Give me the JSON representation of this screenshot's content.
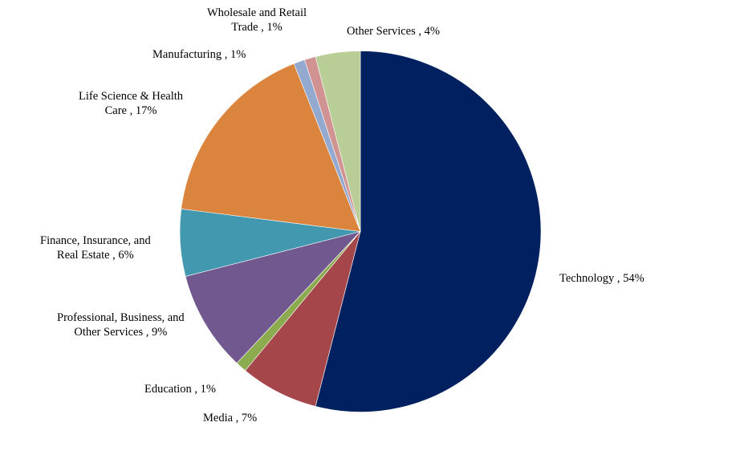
{
  "chart_data": {
    "type": "pie",
    "title": "",
    "start_angle_deg": 0,
    "direction": "clockwise",
    "slices": [
      {
        "label": "Technology",
        "value": 54,
        "display": "Technology , 54%",
        "color": "#002060"
      },
      {
        "label": "Media",
        "value": 7,
        "display": "Media , 7%",
        "color": "#A5464A"
      },
      {
        "label": "Education",
        "value": 1,
        "display": "Education , 1%",
        "color": "#8CAA4E"
      },
      {
        "label": "Professional, Business, and Other Services",
        "value": 9,
        "display": "Professional, Business, and Other Services , 9%",
        "color": "#71588F"
      },
      {
        "label": "Finance, Insurance, and Real Estate",
        "value": 6,
        "display": "Finance, Insurance, and Real Estate , 6%",
        "color": "#4198AF"
      },
      {
        "label": "Life Science & Health Care",
        "value": 17,
        "display": "Life Science & Health Care , 17%",
        "color": "#DB843D"
      },
      {
        "label": "Manufacturing",
        "value": 1,
        "display": "Manufacturing , 1%",
        "color": "#93A9CF"
      },
      {
        "label": "Wholesale and Retail Trade",
        "value": 1,
        "display": "Wholesale and Retail Trade , 1%",
        "color": "#D19392"
      },
      {
        "label": "Other Services",
        "value": 4,
        "display": "Other Services , 4%",
        "color": "#B9CD96"
      }
    ]
  },
  "labels": {
    "technology": [
      "Technology , 54%"
    ],
    "media": [
      "Media , 7%"
    ],
    "education": [
      "Education , 1%"
    ],
    "professional": [
      "Professional, Business, and",
      "Other Services , 9%"
    ],
    "finance": [
      "Finance, Insurance, and",
      "Real Estate , 6%"
    ],
    "life_science": [
      "Life Science & Health",
      "Care , 17%"
    ],
    "manufacturing": [
      "Manufacturing , 1%"
    ],
    "wholesale": [
      "Wholesale and Retail",
      "Trade , 1%"
    ],
    "other_services": [
      "Other Services , 4%"
    ]
  }
}
